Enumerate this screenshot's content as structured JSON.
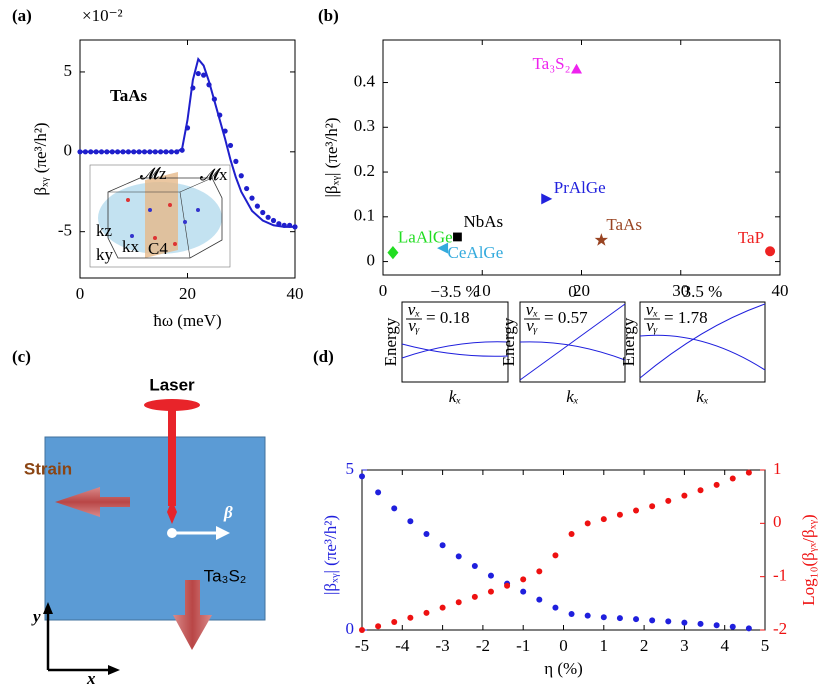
{
  "chart_data": [
    {
      "type": "line",
      "panel": "(a)",
      "multiplier": "×10⁻²",
      "annotation": "TaAs",
      "xlabel": "ħω (meV)",
      "ylabel": "βₓᵧ (πe³/h²)",
      "xlim": [
        0,
        40
      ],
      "ylim": [
        -7.9,
        7
      ],
      "xticks": [
        0,
        20,
        40
      ],
      "yticks": [
        -5,
        0,
        5
      ],
      "inset_labels": [
        "𝓜z",
        "𝓜x",
        "kz",
        "ky",
        "kx",
        "C4"
      ],
      "series": [
        {
          "kind": "line",
          "color": "#1f1fcc",
          "x": [
            0,
            18,
            19,
            20,
            21,
            22,
            23,
            24,
            25,
            26,
            27,
            28,
            29,
            30,
            32,
            34,
            36,
            38,
            40
          ],
          "values": [
            0,
            0,
            0.2,
            2,
            4.5,
            5.8,
            5.4,
            4.4,
            3.2,
            2,
            0.8,
            -0.5,
            -1.6,
            -2.5,
            -3.7,
            -4.3,
            -4.6,
            -4.7,
            -4.7
          ]
        },
        {
          "kind": "dots",
          "color": "#1f1fcc",
          "x": [
            0,
            1,
            2,
            3,
            4,
            5,
            6,
            7,
            8,
            9,
            10,
            11,
            12,
            13,
            14,
            15,
            16,
            17,
            18,
            19,
            20,
            21,
            22,
            23,
            24,
            25,
            26,
            27,
            28,
            29,
            30,
            31,
            32,
            33,
            34,
            35,
            36,
            37,
            38,
            39,
            40
          ],
          "values": [
            0,
            0,
            0,
            0,
            0,
            0,
            0,
            0,
            0,
            0,
            0,
            0,
            0,
            0,
            0,
            0,
            0,
            0,
            0,
            0.1,
            1.5,
            4,
            4.9,
            4.8,
            4.2,
            3.3,
            2.3,
            1.3,
            0.4,
            -0.6,
            -1.5,
            -2.3,
            -2.9,
            -3.4,
            -3.8,
            -4.1,
            -4.3,
            -4.5,
            -4.6,
            -4.6,
            -4.7
          ]
        }
      ]
    },
    {
      "type": "scatter",
      "panel": "(b)",
      "xlabel": "ħω (meV)",
      "ylabel": "|βₓᵧ| (πe³/h²)",
      "xlim": [
        0,
        40
      ],
      "ylim": [
        -0.03,
        0.495
      ],
      "xticks": [
        0,
        10,
        20,
        30,
        40
      ],
      "yticks": [
        0,
        0.1,
        0.2,
        0.3,
        0.4
      ],
      "labels": [
        "LaAlGe",
        "CeAlGe",
        "NbAs",
        "PrAlGe",
        "Ta₃S₂",
        "TaAs",
        "TaP"
      ],
      "x": [
        1,
        6,
        7.5,
        16.5,
        19.5,
        22,
        39
      ],
      "values": [
        0.02,
        0.03,
        0.055,
        0.14,
        0.43,
        0.048,
        0.023
      ],
      "markers": [
        "diamond",
        "triangle-left",
        "square",
        "triangle-right",
        "triangle-up",
        "star",
        "circle"
      ],
      "colors": [
        "#22dd22",
        "#33aadd",
        "#000000",
        "#2222dd",
        "#ee22ee",
        "#994422",
        "#ee2222"
      ]
    },
    {
      "type": "dual-scatter",
      "panel": "(d)",
      "xlabel": "η (%)",
      "xlim": [
        -5,
        5
      ],
      "ylim": [
        0,
        5
      ],
      "y2lim": [
        -2,
        1
      ],
      "xticks": [
        -5,
        -4,
        -3,
        -2,
        -1,
        0,
        1,
        2,
        3,
        4,
        5
      ],
      "yticks": [
        0,
        5
      ],
      "y2ticks": [
        -2,
        -1,
        0,
        1
      ],
      "ylabel": "|βₓᵧ| (πe³/h²)",
      "y2label": "Log₁₀(βᵧₓ/βₓᵧ)",
      "x": [
        -5,
        -4.6,
        -4.2,
        -3.8,
        -3.4,
        -3,
        -2.6,
        -2.2,
        -1.8,
        -1.4,
        -1,
        -0.6,
        -0.2,
        0.2,
        0.6,
        1,
        1.4,
        1.8,
        2.2,
        2.6,
        3,
        3.4,
        3.8,
        4.2,
        4.6
      ],
      "series": [
        {
          "color": "#1f1fdd",
          "axis": "y",
          "values": [
            4.8,
            4.3,
            3.8,
            3.4,
            3.0,
            2.65,
            2.3,
            2.0,
            1.7,
            1.45,
            1.2,
            0.95,
            0.7,
            0.5,
            0.45,
            0.4,
            0.37,
            0.34,
            0.3,
            0.27,
            0.23,
            0.19,
            0.15,
            0.1,
            0.05
          ]
        },
        {
          "color": "#ee1111",
          "axis": "y2",
          "values": [
            -2,
            -1.93,
            -1.85,
            -1.77,
            -1.68,
            -1.58,
            -1.48,
            -1.38,
            -1.28,
            -1.17,
            -1.05,
            -0.9,
            -0.6,
            -0.2,
            0,
            0.08,
            0.16,
            0.24,
            0.32,
            0.42,
            0.52,
            0.62,
            0.72,
            0.84,
            0.95
          ]
        }
      ],
      "insets": [
        {
          "title": "−3.5 %",
          "ylabel": "Energy",
          "xlabel": "kₓ",
          "num": "vₓ",
          "den": "vᵧ",
          "ratio": "= 0.18"
        },
        {
          "title": "0",
          "ylabel": "Energy",
          "xlabel": "kₓ",
          "num": "vₓ",
          "den": "vᵧ",
          "ratio": "= 0.57"
        },
        {
          "title": "3.5 %",
          "ylabel": "Energy",
          "xlabel": "kₓ",
          "num": "vₓ",
          "den": "vᵧ",
          "ratio": "= 1.78"
        }
      ]
    }
  ],
  "diagram": {
    "panel": "(c)",
    "laser": "Laser",
    "strain": "Strain",
    "beta": "β",
    "material": "Ta₃S₂",
    "y": "y",
    "x": "x"
  }
}
